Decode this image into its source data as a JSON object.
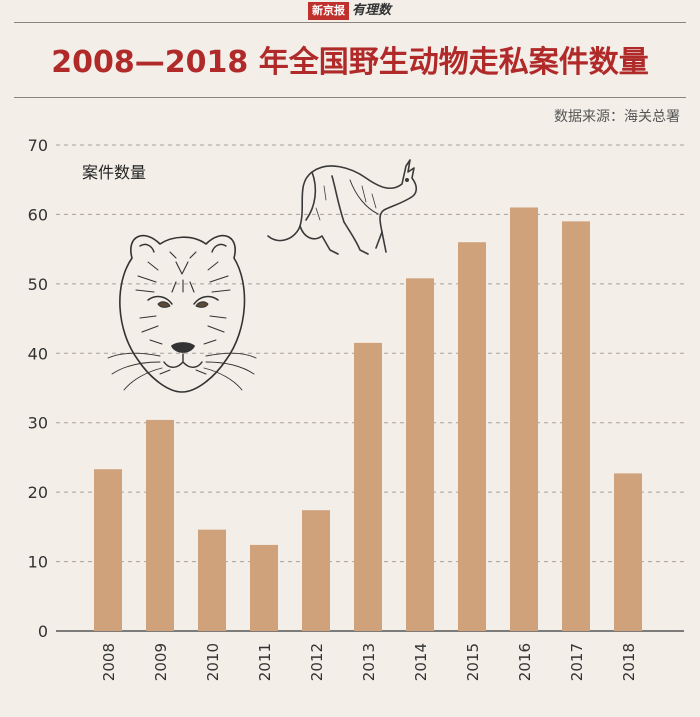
{
  "brand": {
    "box": "新京报",
    "text": "有理数"
  },
  "title": "2008—2018 年全国野生动物走私案件数量",
  "source": "数据来源：海关总署",
  "colors": {
    "bar": "#cfa27c",
    "title": "#b02a2a",
    "grid": "#a9a29b",
    "background": "#f3eee8"
  },
  "illustrations": {
    "tiger": "tiger-icon",
    "kangaroo": "kangaroo-icon"
  },
  "chart_data": {
    "type": "bar",
    "ylabel": "案件数量",
    "categories": [
      "2008",
      "2009",
      "2010",
      "2011",
      "2012",
      "2013",
      "2014",
      "2015",
      "2016",
      "2017",
      "2018"
    ],
    "values": [
      23.3,
      30.4,
      14.6,
      12.4,
      17.4,
      41.5,
      50.8,
      56,
      61,
      59,
      22.7
    ],
    "ylim": [
      0,
      70
    ],
    "yticks": [
      0,
      10,
      20,
      30,
      40,
      50,
      60,
      70
    ],
    "grid": true,
    "grid_style": "dashed"
  }
}
